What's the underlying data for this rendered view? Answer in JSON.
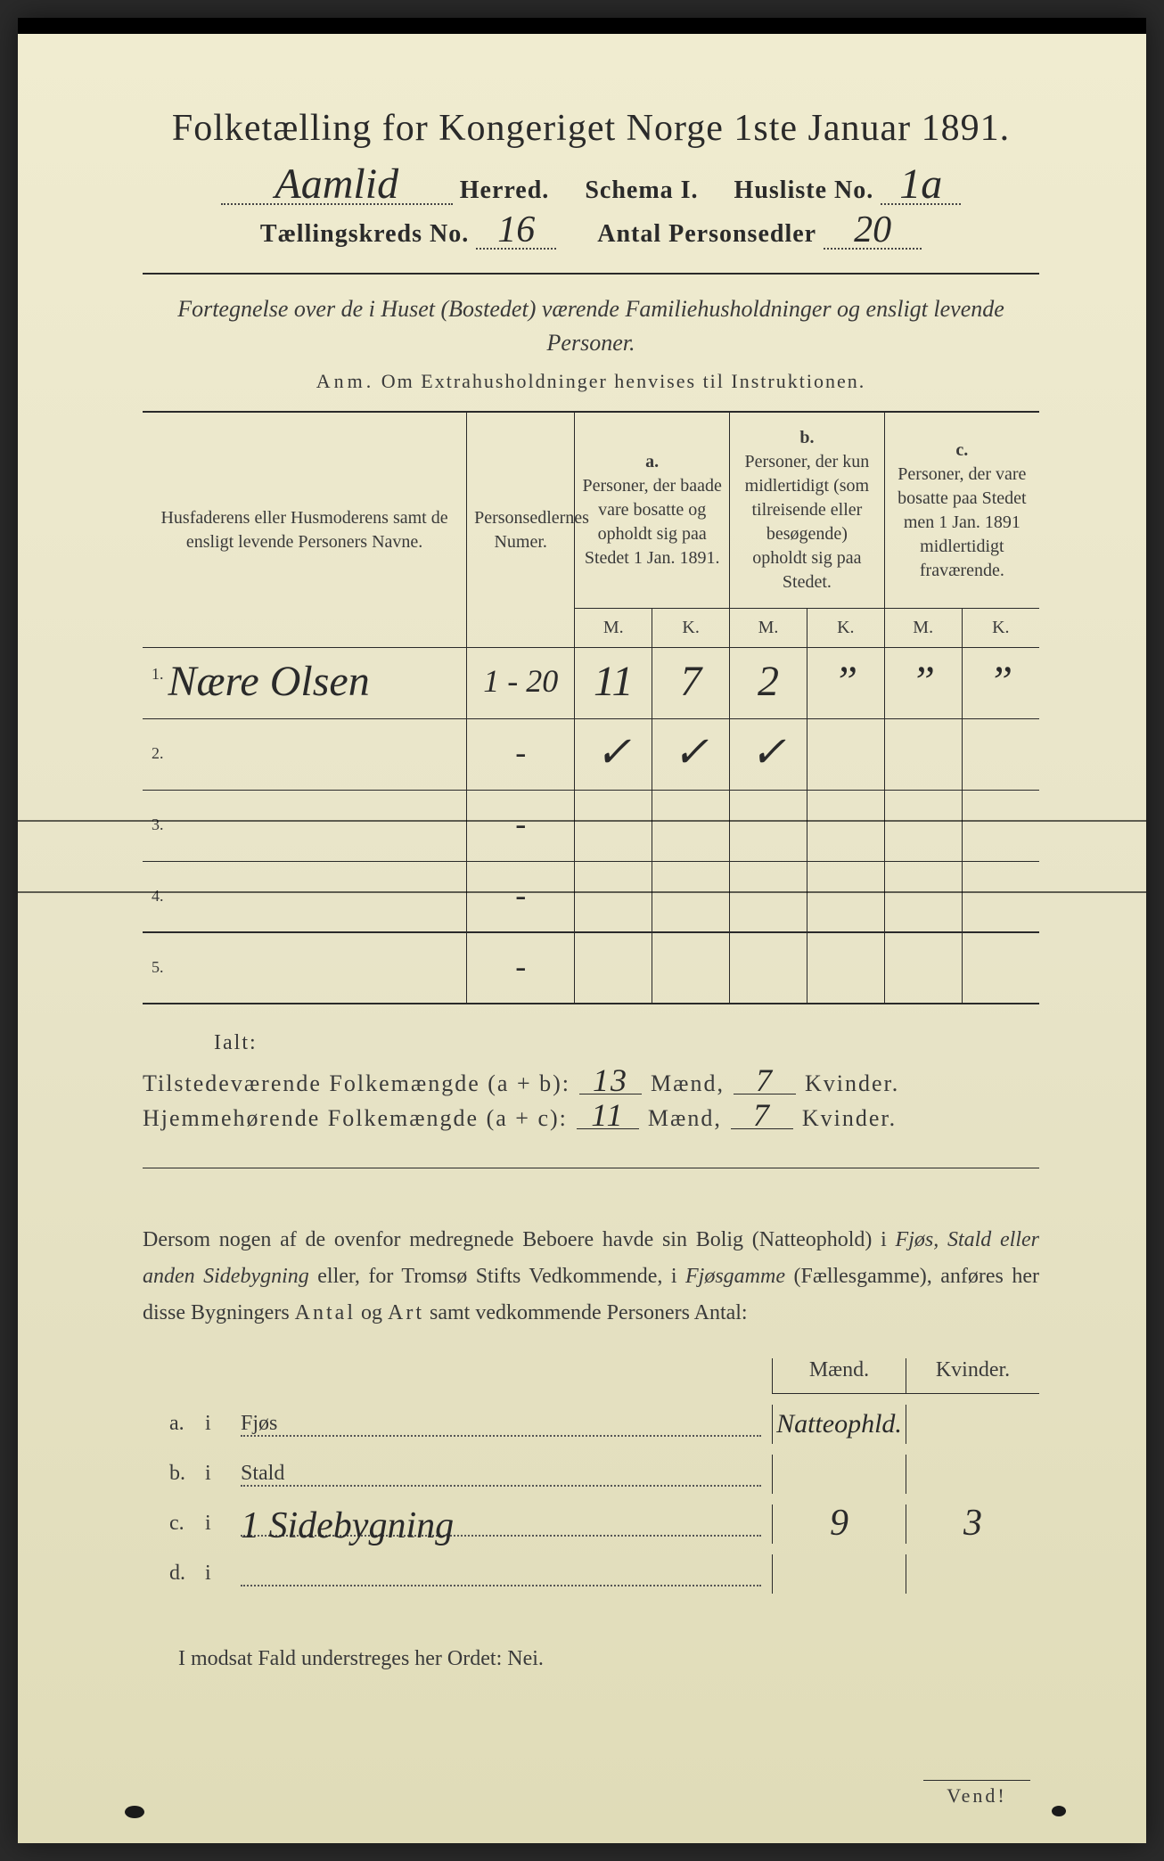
{
  "title": "Folketælling for Kongeriget Norge 1ste Januar 1891.",
  "header": {
    "herred_value": "Aamlid",
    "herred_label": "Herred.",
    "schema_label": "Schema I.",
    "husliste_label": "Husliste No.",
    "husliste_value": "1a",
    "kreds_label": "Tællingskreds No.",
    "kreds_value": "16",
    "antal_label": "Antal Personsedler",
    "antal_value": "20"
  },
  "subtitle": "Fortegnelse over de i Huset (Bostedet) værende Familiehusholdninger og ensligt levende Personer.",
  "anm_label": "Anm.",
  "anm_text": "Om Extrahusholdninger henvises til Instruktionen.",
  "table": {
    "col1": "Husfaderens eller Husmoderens samt de ensligt levende Personers Navne.",
    "col2": "Personsedlernes Numer.",
    "col_a_label": "a.",
    "col_a": "Personer, der baade vare bosatte og opholdt sig paa Stedet 1 Jan. 1891.",
    "col_b_label": "b.",
    "col_b": "Personer, der kun midlertidigt (som tilreisende eller besøgende) opholdt sig paa Stedet.",
    "col_c_label": "c.",
    "col_c": "Personer, der vare bosatte paa Stedet men 1 Jan. 1891 midlertidigt fraværende.",
    "m": "M.",
    "k": "K.",
    "rows": [
      {
        "idx": "1.",
        "name": "Nære Olsen",
        "num": "1 - 20",
        "am": "11",
        "ak": "7",
        "bm": "2",
        "bk": "”",
        "cm": "”",
        "ck": "”"
      },
      {
        "idx": "2.",
        "name": "",
        "num": "-",
        "am": "✓",
        "ak": "✓",
        "bm": "✓",
        "bk": "",
        "cm": "",
        "ck": ""
      },
      {
        "idx": "3.",
        "name": "",
        "num": "-",
        "am": "",
        "ak": "",
        "bm": "",
        "bk": "",
        "cm": "",
        "ck": ""
      },
      {
        "idx": "4.",
        "name": "",
        "num": "-",
        "am": "",
        "ak": "",
        "bm": "",
        "bk": "",
        "cm": "",
        "ck": ""
      },
      {
        "idx": "5.",
        "name": "",
        "num": "-",
        "am": "",
        "ak": "",
        "bm": "",
        "bk": "",
        "cm": "",
        "ck": ""
      }
    ]
  },
  "ialt": "Ialt:",
  "totals": {
    "line1_label": "Tilstedeværende Folkemængde (a + b):",
    "line1_m": "13",
    "line1_k": "7",
    "line2_label": "Hjemmehørende Folkemængde (a + c):",
    "line2_m": "11",
    "line2_k": "7",
    "maend": "Mænd,",
    "kvinder": "Kvinder."
  },
  "para": {
    "t1": "Dersom nogen af de ovenfor medregnede Beboere havde sin Bolig (Natteophold) i ",
    "i1": "Fjøs, Stald eller anden Sidebygning",
    "t2": " eller, for Tromsø Stifts Vedkommende, i ",
    "i2": "Fjøsgamme",
    "t3": " (Fællesgamme), anføres her disse Bygningers ",
    "b1": "Antal",
    "t4": " og ",
    "b2": "Art",
    "t5": " samt vedkommende Personers Antal:"
  },
  "side": {
    "maend": "Mænd.",
    "kvinder": "Kvinder.",
    "rows": [
      {
        "l": "a.",
        "i": "i",
        "label": "Fjøs",
        "text": "",
        "m": "Natteophld.",
        "k": ""
      },
      {
        "l": "b.",
        "i": "i",
        "label": "Stald",
        "text": "",
        "m": "",
        "k": ""
      },
      {
        "l": "c.",
        "i": "i",
        "label": "",
        "text": "1 Sidebygning",
        "m": "9",
        "k": "3"
      },
      {
        "l": "d.",
        "i": "i",
        "label": "",
        "text": "",
        "m": "",
        "k": ""
      }
    ]
  },
  "footer": "I modsat Fald understreges her Ordet: Nei.",
  "vend": "Vend!",
  "colors": {
    "paper": "#e8e4c8",
    "ink": "#2a2a2a",
    "background": "#2a2a2a"
  }
}
